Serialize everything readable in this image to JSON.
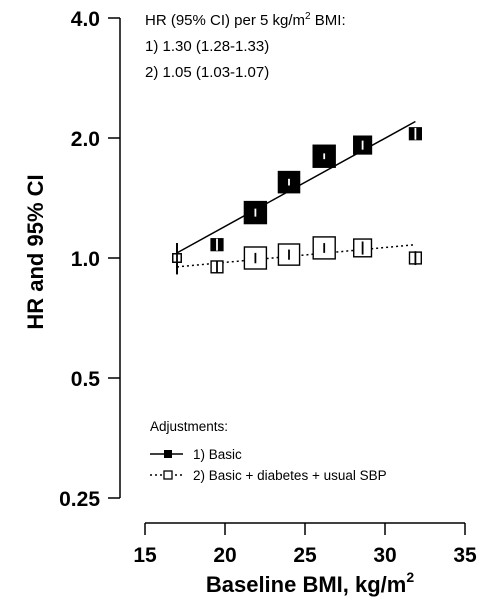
{
  "chart_data": {
    "type": "scatter",
    "title": "",
    "xlabel": "Baseline BMI, kg/m",
    "xlabel_superscript": "2",
    "ylabel": "HR and 95% CI",
    "x_scale": "linear",
    "y_scale": "log",
    "xlim": [
      15,
      35
    ],
    "ylim": [
      0.25,
      4.0
    ],
    "xticks": [
      15,
      20,
      25,
      30,
      35
    ],
    "xtick_labels": [
      "15",
      "20",
      "25",
      "30",
      "35"
    ],
    "yticks": [
      0.25,
      0.5,
      1.0,
      2.0,
      4.0
    ],
    "ytick_labels": [
      "0.25",
      "0.5",
      "1.0",
      "2.0",
      "4.0"
    ],
    "grid": false,
    "annotation": {
      "title": "HR (95% CI) per 5 kg/m",
      "title_superscript": "2",
      "title_suffix": " BMI:",
      "lines": [
        "1) 1.30 (1.28-1.33)",
        "2) 1.05 (1.03-1.07)"
      ]
    },
    "legend": {
      "title": "Adjustments:",
      "position": "bottom-left",
      "entries": [
        "1) Basic",
        "2) Basic + diabetes + usual SBP"
      ]
    },
    "series": [
      {
        "name": "1) Basic",
        "marker": "filled-square",
        "line": "solid",
        "color": "#000000",
        "x": [
          17.0,
          19.5,
          21.9,
          24.0,
          26.2,
          28.6,
          31.9
        ],
        "y": [
          1.0,
          1.08,
          1.3,
          1.55,
          1.8,
          1.92,
          2.05
        ],
        "ci_low": [
          0.91,
          1.04,
          1.27,
          1.52,
          1.77,
          1.87,
          1.98
        ],
        "ci_high": [
          1.09,
          1.12,
          1.33,
          1.58,
          1.83,
          1.97,
          2.12
        ],
        "marker_weight": [
          0.2,
          0.4,
          1.0,
          0.95,
          1.0,
          0.75,
          0.4
        ],
        "trend": {
          "x": [
            17.0,
            31.9
          ],
          "y": [
            1.03,
            2.2
          ]
        }
      },
      {
        "name": "2) Basic + diabetes + usual SBP",
        "marker": "open-square",
        "line": "dotted",
        "color": "#000000",
        "x": [
          17.0,
          19.5,
          21.9,
          24.0,
          26.2,
          28.6,
          31.9
        ],
        "y": [
          1.0,
          0.95,
          1.0,
          1.02,
          1.06,
          1.06,
          1.0
        ],
        "ci_low": [
          0.91,
          0.92,
          0.97,
          0.99,
          1.03,
          1.02,
          0.96
        ],
        "ci_high": [
          1.09,
          0.98,
          1.03,
          1.05,
          1.09,
          1.1,
          1.04
        ],
        "marker_weight": [
          0.2,
          0.4,
          1.0,
          0.95,
          1.0,
          0.75,
          0.4
        ],
        "trend": {
          "x": [
            17.0,
            31.9
          ],
          "y": [
            0.95,
            1.08
          ]
        }
      }
    ]
  }
}
